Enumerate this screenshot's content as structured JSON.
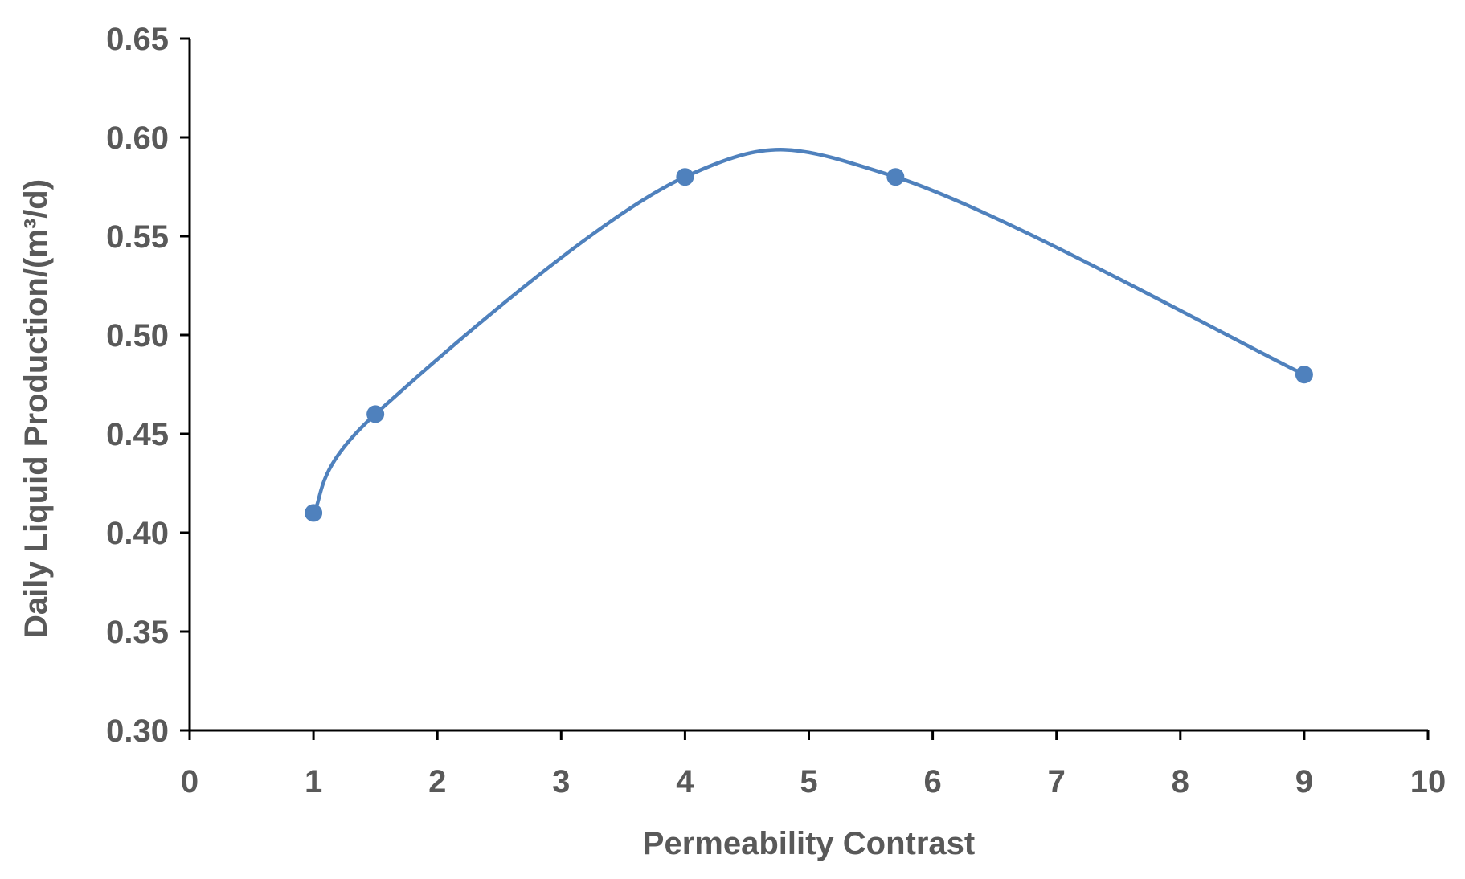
{
  "chart_data": {
    "type": "line",
    "title": "",
    "xlabel": "Permeability Contrast",
    "ylabel": "Daily Liquid Production/(m³/d)",
    "xlim": [
      0,
      10
    ],
    "ylim": [
      0.3,
      0.65
    ],
    "x_ticks": [
      "0",
      "1",
      "2",
      "3",
      "4",
      "5",
      "6",
      "7",
      "8",
      "9",
      "10"
    ],
    "y_ticks": [
      "0.30",
      "0.35",
      "0.40",
      "0.45",
      "0.50",
      "0.55",
      "0.60",
      "0.65"
    ],
    "grid": false,
    "legend": "none",
    "smooth": true,
    "series": [
      {
        "x": [
          1,
          1.5,
          4,
          5.7,
          9
        ],
        "y": [
          0.41,
          0.46,
          0.58,
          0.58,
          0.48
        ],
        "color": "#4F81BD",
        "marker": "circle"
      }
    ],
    "axis_color": "#000000",
    "text_color": "#595959"
  }
}
